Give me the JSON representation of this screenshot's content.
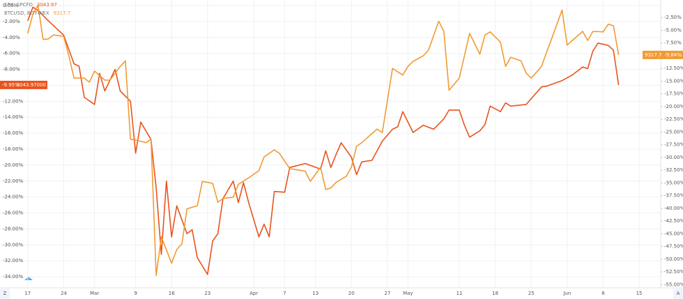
{
  "chart_data": {
    "type": "line",
    "scale_buttons": [
      "Z",
      "A"
    ],
    "xlim": [
      -5.4,
      123.2
    ],
    "xticks": [
      {
        "value": 0,
        "label": "17"
      },
      {
        "value": 7,
        "label": "24"
      },
      {
        "value": 13,
        "label": "Mar"
      },
      {
        "value": 21,
        "label": "9"
      },
      {
        "value": 28,
        "label": "16"
      },
      {
        "value": 35,
        "label": "23"
      },
      {
        "value": 44,
        "label": "Apr"
      },
      {
        "value": 50,
        "label": "7"
      },
      {
        "value": 56,
        "label": "13"
      },
      {
        "value": 63,
        "label": "20"
      },
      {
        "value": 70,
        "label": "27"
      },
      {
        "value": 74,
        "label": "May"
      },
      {
        "value": 84,
        "label": "11"
      },
      {
        "value": 91,
        "label": "18"
      },
      {
        "value": 98,
        "label": "25"
      },
      {
        "value": 105,
        "label": "Jun"
      },
      {
        "value": 112,
        "label": "8"
      },
      {
        "value": 119,
        "label": "15"
      }
    ],
    "ylim": [
      -35.3,
      0.7
    ],
    "yticks": [
      {
        "value": 0,
        "label": "0.00%"
      },
      {
        "value": -2,
        "label": "-2.00%"
      },
      {
        "value": -4,
        "label": "-4.00%"
      },
      {
        "value": -6,
        "label": "-6.00%"
      },
      {
        "value": -8,
        "label": "-8.00%"
      },
      {
        "value": -10,
        "label": "-10.00%"
      },
      {
        "value": -12,
        "label": "-12.00%"
      },
      {
        "value": -14,
        "label": "-14.00%"
      },
      {
        "value": -16,
        "label": "-16.00%"
      },
      {
        "value": -18,
        "label": "-18.00%"
      },
      {
        "value": -20,
        "label": "-20.00%"
      },
      {
        "value": -22,
        "label": "-22.00%"
      },
      {
        "value": -24,
        "label": "-24.00%"
      },
      {
        "value": -26,
        "label": "-26.00%"
      },
      {
        "value": -28,
        "label": "-28.00%"
      },
      {
        "value": -30,
        "label": "-30.00%"
      },
      {
        "value": -32,
        "label": "-32.00%"
      },
      {
        "value": -34,
        "label": "-34.00%"
      }
    ],
    "y2lim": [
      -55.5,
      0.96
    ],
    "y2ticks": [
      {
        "value": -2.5,
        "label": "-2.50%"
      },
      {
        "value": -5,
        "label": "-5.00%"
      },
      {
        "value": -7.5,
        "label": "-7.50%"
      },
      {
        "value": -10,
        "label": "-10.00%"
      },
      {
        "value": -12.5,
        "label": "-12.50%"
      },
      {
        "value": -15,
        "label": "-15.00%"
      },
      {
        "value": -17.5,
        "label": "-17.50%"
      },
      {
        "value": -20,
        "label": "-20.00%"
      },
      {
        "value": -22.5,
        "label": "-22.50%"
      },
      {
        "value": -25,
        "label": "-25.00%"
      },
      {
        "value": -27.5,
        "label": "-27.50%"
      },
      {
        "value": -30,
        "label": "-30.00%"
      },
      {
        "value": -32.5,
        "label": "-32.50%"
      },
      {
        "value": -35,
        "label": "-35.00%"
      },
      {
        "value": -37.5,
        "label": "-37.50%"
      },
      {
        "value": -40,
        "label": "-40.00%"
      },
      {
        "value": -42.5,
        "label": "-42.50%"
      },
      {
        "value": -45,
        "label": "-45.00%"
      },
      {
        "value": -47.5,
        "label": "-47.50%"
      },
      {
        "value": -50,
        "label": "-50.00%"
      },
      {
        "value": -52.5,
        "label": "-52.50%"
      },
      {
        "value": -55,
        "label": "-55.00%"
      }
    ],
    "grid": true,
    "series": [
      {
        "name": "SPX, SPCFD",
        "price": "3043.97",
        "last_value_label": "-9.95%",
        "last_price_label": "3043.97000",
        "color": "#e8531d",
        "x": [
          0,
          1,
          2,
          4,
          7,
          9,
          10,
          11,
          13,
          14,
          15,
          17,
          18,
          20,
          21,
          22,
          24,
          25,
          26,
          27,
          28,
          29,
          31,
          32,
          33,
          35,
          36,
          37,
          38,
          40,
          41,
          42,
          43,
          45,
          46,
          47,
          48,
          50,
          51,
          54,
          57,
          58,
          59,
          60,
          61,
          63,
          64,
          65,
          67,
          69,
          71,
          72,
          73,
          75,
          77,
          79,
          81,
          82,
          84,
          85,
          86,
          88,
          89,
          90,
          92,
          93,
          94,
          97,
          100,
          101,
          104,
          106,
          108,
          109,
          110,
          111,
          113,
          114,
          115
        ],
        "values": [
          -1.9,
          -0.2,
          -0.6,
          -1.9,
          -3.7,
          -7.3,
          -7.6,
          -11.5,
          -12.4,
          -8.5,
          -10.7,
          -8.0,
          -10.7,
          -12.0,
          -18.5,
          -14.6,
          -16.8,
          -22.9,
          -31.2,
          -22.0,
          -29.0,
          -25.1,
          -28.6,
          -28.1,
          -31.6,
          -33.7,
          -29.5,
          -28.6,
          -24.2,
          -22.0,
          -24.7,
          -22.2,
          -24.7,
          -29.0,
          -27.4,
          -29.0,
          -23.3,
          -23.4,
          -20.3,
          -19.8,
          -20.5,
          -18.2,
          -20.3,
          -18.7,
          -17.2,
          -19.0,
          -21.2,
          -19.6,
          -19.4,
          -17.0,
          -15.5,
          -15.2,
          -13.3,
          -15.9,
          -15.0,
          -15.5,
          -14.2,
          -13.1,
          -13.1,
          -15.0,
          -16.5,
          -15.7,
          -14.9,
          -12.6,
          -13.3,
          -12.2,
          -12.6,
          -12.4,
          -10.2,
          -10.1,
          -9.4,
          -8.7,
          -7.7,
          -7.9,
          -5.7,
          -4.7,
          -5.0,
          -5.6,
          -9.95
        ]
      },
      {
        "name": "BTCUSD, BITFINEX",
        "price": "9317.7",
        "last_value_label": "-9.84%",
        "last_price_label": "9317.7",
        "color": "#f19a32",
        "axis": "y2",
        "x": [
          0,
          1,
          2,
          3,
          4,
          5,
          7,
          8,
          9,
          11,
          12,
          13,
          15,
          16,
          18,
          19,
          20,
          22,
          23,
          24,
          25,
          26,
          28,
          29,
          30,
          31,
          33,
          34,
          36,
          37,
          38,
          40,
          41,
          43,
          45,
          46,
          48,
          49,
          51,
          54,
          55,
          57,
          58,
          59,
          60,
          62,
          63,
          64,
          65,
          67,
          68,
          69,
          71,
          73,
          74,
          75,
          77,
          78,
          80,
          81,
          82,
          84,
          85,
          86,
          88,
          89,
          90,
          92,
          93,
          94,
          96,
          97,
          98,
          100,
          101,
          102,
          104,
          105,
          106,
          108,
          109,
          110,
          112,
          113,
          114,
          115
        ],
        "values": [
          -5.6,
          -1.8,
          -0.1,
          -6.8,
          -6.7,
          -5.9,
          -6.2,
          -10.0,
          -14.4,
          -14.4,
          -15.2,
          -13.0,
          -14.8,
          -14.8,
          -12.1,
          -11.0,
          -26.4,
          -26.8,
          -27.1,
          -26.4,
          -53.2,
          -45.6,
          -50.8,
          -48.1,
          -47.0,
          -40.1,
          -39.5,
          -34.7,
          -35.1,
          -38.8,
          -38.1,
          -37.8,
          -35.3,
          -34.0,
          -32.6,
          -29.9,
          -28.5,
          -29.2,
          -32.2,
          -32.7,
          -34.7,
          -31.9,
          -36.3,
          -36.0,
          -34.9,
          -33.7,
          -31.9,
          -27.8,
          -27.1,
          -25.3,
          -24.4,
          -25.1,
          -12.5,
          -13.8,
          -12.1,
          -11.1,
          -10.0,
          -8.9,
          -3.2,
          -5.2,
          -16.8,
          -14.4,
          -10.0,
          -5.6,
          -9.7,
          -5.9,
          -5.3,
          -7.3,
          -12.1,
          -10.3,
          -11.0,
          -13.4,
          -14.4,
          -12.1,
          -9.3,
          -6.6,
          -1.0,
          -7.9,
          -7.0,
          -5.2,
          -7.0,
          -5.2,
          -5.3,
          -3.8,
          -4.1,
          -9.84
        ]
      }
    ]
  }
}
